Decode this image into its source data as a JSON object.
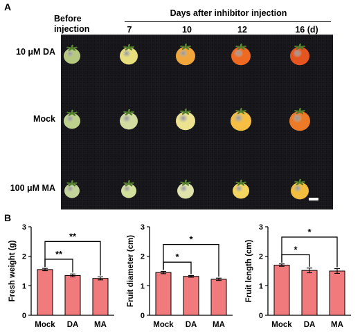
{
  "panelA": {
    "label": "A",
    "before_label_1": "Before",
    "before_label_2": "injection",
    "days_header": "Days after inhibitor injection",
    "days": [
      "7",
      "10",
      "12",
      "16 (d)"
    ],
    "rows": [
      "10 μM DA",
      "Mock",
      "100 μM MA"
    ],
    "fruit_colors": [
      [
        "#b6c780",
        "#e8df7c",
        "#f0a63a",
        "#ee6a22",
        "#e45520"
      ],
      [
        "#bdd08c",
        "#d2dba0",
        "#ece290",
        "#f6bf44",
        "#ec7a26"
      ],
      [
        "#c3d49a",
        "#d3df9c",
        "#dfe3ab",
        "#f2d660",
        "#f3be3d"
      ]
    ]
  },
  "panelB": {
    "label": "B",
    "charts": [
      {
        "type": "bar",
        "ylabel": "Fresh weight (g)",
        "categories": [
          "Mock",
          "DA",
          "MA"
        ],
        "values": [
          1.55,
          1.35,
          1.25
        ],
        "errors": [
          0.04,
          0.05,
          0.05
        ],
        "ylim": [
          0,
          3
        ],
        "yticks": [
          "0",
          "1",
          "2",
          "3"
        ],
        "bar_color": "#f07a7c",
        "significance": [
          {
            "from": 0,
            "to": 1,
            "label": "**"
          },
          {
            "from": 0,
            "to": 2,
            "label": "**"
          }
        ]
      },
      {
        "type": "bar",
        "ylabel": "Fruit diameter (cm)",
        "categories": [
          "Mock",
          "DA",
          "MA"
        ],
        "values": [
          1.45,
          1.32,
          1.22
        ],
        "errors": [
          0.04,
          0.03,
          0.04
        ],
        "ylim": [
          0,
          3
        ],
        "yticks": [
          "0",
          "1",
          "2",
          "3"
        ],
        "bar_color": "#f07a7c",
        "significance": [
          {
            "from": 0,
            "to": 1,
            "label": "*"
          },
          {
            "from": 0,
            "to": 2,
            "label": "*"
          }
        ]
      },
      {
        "type": "bar",
        "ylabel": "Fruit length (cm)",
        "categories": [
          "Mock",
          "DA",
          "MA"
        ],
        "values": [
          1.7,
          1.52,
          1.5
        ],
        "errors": [
          0.04,
          0.08,
          0.08
        ],
        "ylim": [
          0,
          3
        ],
        "yticks": [
          "0",
          "1",
          "2",
          "3"
        ],
        "bar_color": "#f07a7c",
        "significance": [
          {
            "from": 0,
            "to": 1,
            "label": "*"
          },
          {
            "from": 0,
            "to": 2,
            "label": "*"
          }
        ]
      }
    ]
  }
}
